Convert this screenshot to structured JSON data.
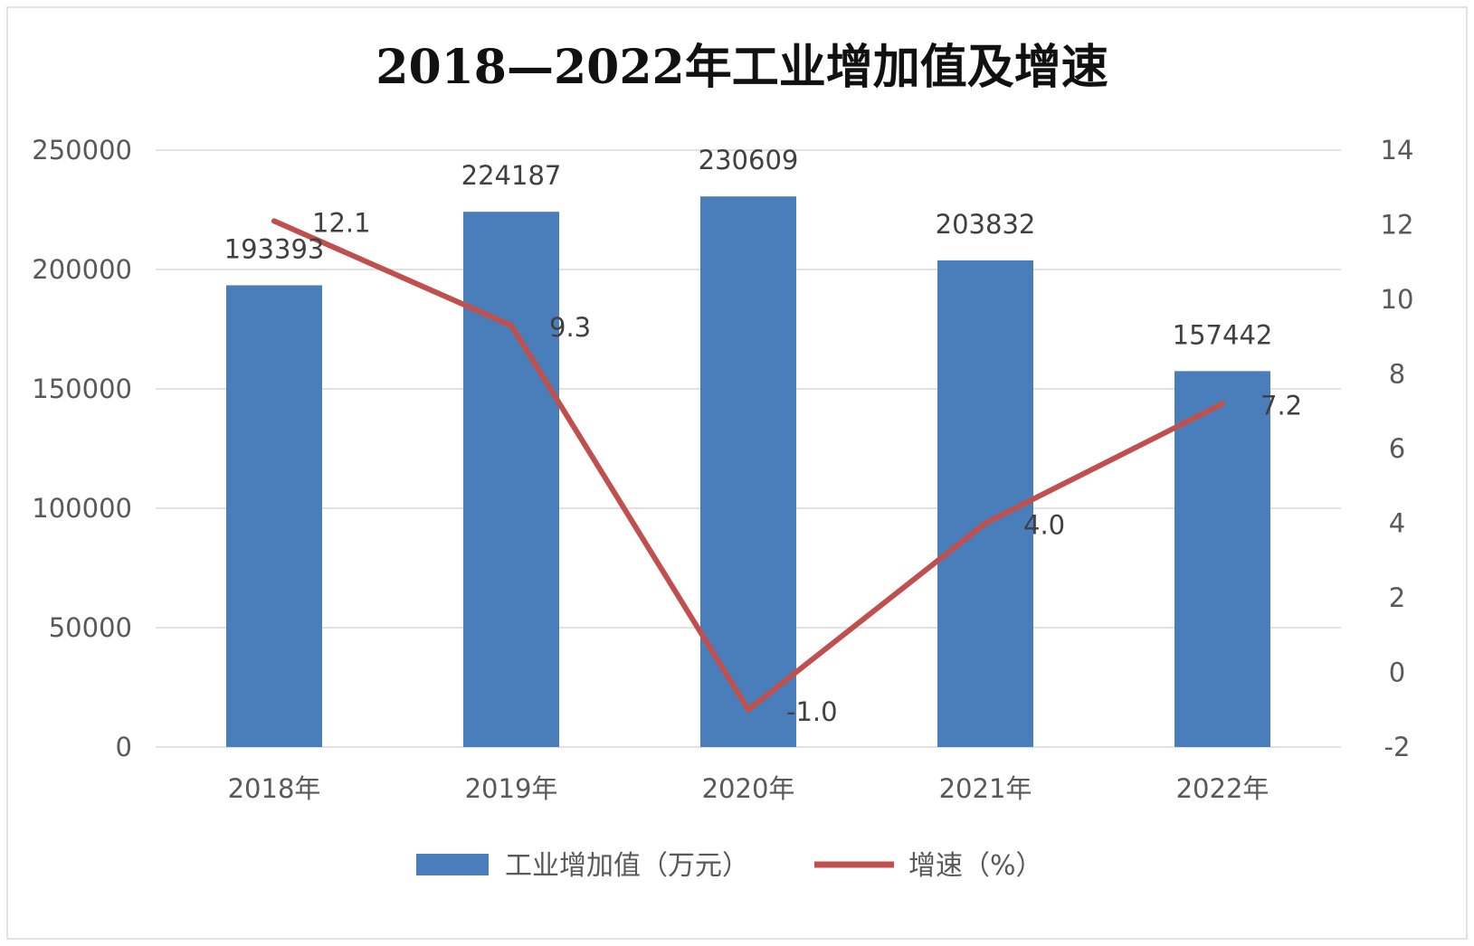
{
  "chart_data": {
    "type": "bar",
    "title": "2018—2022年工业增加值及增速",
    "categories": [
      "2018年",
      "2019年",
      "2020年",
      "2021年",
      "2022年"
    ],
    "series": [
      {
        "name": "工业增加值（万元）",
        "type": "bar",
        "axis": "left",
        "values": [
          193393,
          224187,
          230609,
          203832,
          157442
        ],
        "labels": [
          "193393",
          "224187",
          "230609",
          "203832",
          "157442"
        ],
        "color": "#4a7ebb"
      },
      {
        "name": "增速（%）",
        "type": "line",
        "axis": "right",
        "values": [
          12.1,
          9.3,
          -1.0,
          4.0,
          7.2
        ],
        "labels": [
          "12.1",
          "9.3",
          "-1.0",
          "4.0",
          "7.2"
        ],
        "color": "#c0504d"
      }
    ],
    "y_left": {
      "min": 0,
      "max": 250000,
      "ticks": [
        0,
        50000,
        100000,
        150000,
        200000,
        250000
      ]
    },
    "y_right": {
      "min": -2,
      "max": 14,
      "ticks": [
        -2,
        0,
        2,
        4,
        6,
        8,
        10,
        12,
        14
      ]
    },
    "grid": true,
    "legend_position": "bottom"
  }
}
